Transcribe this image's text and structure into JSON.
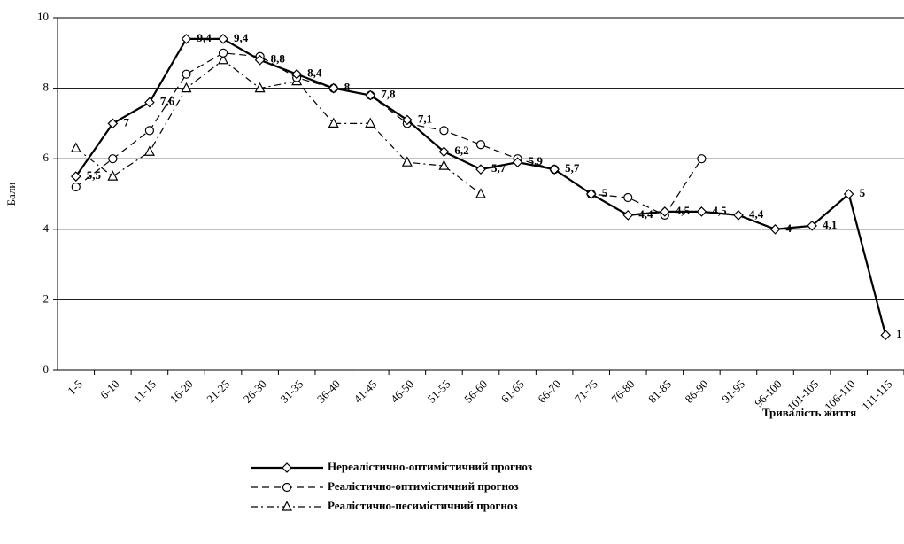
{
  "chart_data": {
    "type": "line",
    "y_label": "Бали",
    "x_label": "Тривалість життя",
    "categories": [
      "1-5",
      "6-10",
      "11-15",
      "16-20",
      "21-25",
      "26-30",
      "31-35",
      "36-40",
      "41-45",
      "46-50",
      "51-55",
      "56-60",
      "61-65",
      "66-70",
      "71-75",
      "76-80",
      "81-85",
      "86-90",
      "91-95",
      "96-100",
      "101-105",
      "106-110",
      "111-115"
    ],
    "ylim": [
      0,
      10
    ],
    "yticks": [
      0,
      2,
      4,
      6,
      8,
      10
    ],
    "grid": true,
    "legend": "bottom",
    "series": [
      {
        "name": "Нереалістично-оптимістичний прогноз",
        "color": "#000000",
        "dash": "solid",
        "marker": "diamond",
        "values": [
          5.5,
          7,
          7.6,
          9.4,
          9.4,
          8.8,
          8.4,
          8,
          7.8,
          7.1,
          6.2,
          5.7,
          5.9,
          5.7,
          5,
          4.4,
          4.5,
          4.5,
          4.4,
          4,
          4.1,
          5,
          1
        ],
        "value_labels": [
          "5,5",
          "7",
          "7,6",
          "9,4",
          "9,4",
          "8,8",
          "8,4",
          "8",
          "7,8",
          "7,1",
          "6,2",
          "5,7",
          "5,9",
          "5,7",
          "5",
          "4,4",
          "4,5",
          "4,5",
          "4,4",
          "4",
          "4,1",
          "5",
          "1"
        ]
      },
      {
        "name": "Реалістично-оптимістичний прогноз",
        "color": "#000000",
        "dash": "dash",
        "marker": "circle",
        "values": [
          5.2,
          6,
          6.8,
          8.4,
          9,
          8.9,
          8.3,
          8,
          7.8,
          7,
          6.8,
          6.4,
          6,
          5.7,
          5,
          4.9,
          4.4,
          6,
          null,
          null,
          null,
          null,
          null
        ]
      },
      {
        "name": "Реалістично-песимістичний прогноз",
        "color": "#000000",
        "dash": "dashdot",
        "marker": "triangle",
        "values": [
          6.3,
          5.5,
          6.2,
          8,
          8.8,
          8,
          8.2,
          7,
          7,
          5.9,
          5.8,
          5,
          null,
          null,
          null,
          null,
          null,
          null,
          null,
          null,
          null,
          null,
          null
        ]
      }
    ]
  }
}
